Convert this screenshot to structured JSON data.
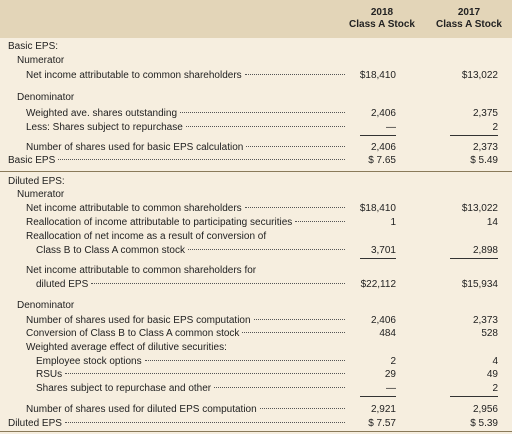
{
  "header": {
    "columns": [
      {
        "year": "2018",
        "class": "Class A Stock"
      },
      {
        "year": "2017",
        "class": "Class A Stock"
      }
    ]
  },
  "table": {
    "rows": [
      {
        "label": "Basic EPS:"
      },
      {
        "label": "Numerator"
      },
      {
        "label": "Net income attributable to common shareholders",
        "values": [
          "$18,410",
          "$13,022"
        ]
      },
      {
        "label": "Denominator"
      },
      {
        "label": "Weighted ave. shares outstanding",
        "values": [
          "2,406",
          "2,375"
        ]
      },
      {
        "label": "Less: Shares subject to repurchase",
        "values": [
          "—",
          "2"
        ]
      },
      {
        "label": "Number of shares used for basic EPS calculation",
        "values": [
          "2,406",
          "2,373"
        ]
      },
      {
        "label": "Basic EPS",
        "values": [
          "$ 7.65",
          "$ 5.49"
        ]
      },
      {
        "label": "Diluted EPS:"
      },
      {
        "label": "Numerator"
      },
      {
        "label": "Net income attributable to common shareholders",
        "values": [
          "$18,410",
          "$13,022"
        ]
      },
      {
        "label": "Reallocation of income attributable to participating securities",
        "values": [
          "1",
          "14"
        ]
      },
      {
        "label": "Reallocation of net income as a result of conversion of"
      },
      {
        "label": "Class B to Class A common stock",
        "values": [
          "3,701",
          "2,898"
        ]
      },
      {
        "label": "Net income attributable to common shareholders for"
      },
      {
        "label": "diluted EPS",
        "values": [
          "$22,112",
          "$15,934"
        ]
      },
      {
        "label": "Denominator"
      },
      {
        "label": "Number of shares used for basic EPS computation",
        "values": [
          "2,406",
          "2,373"
        ]
      },
      {
        "label": "Conversion of Class B to Class A common stock",
        "values": [
          "484",
          "528"
        ]
      },
      {
        "label": "Weighted average effect of dilutive securities:"
      },
      {
        "label": "Employee stock options",
        "values": [
          "2",
          "4"
        ]
      },
      {
        "label": "RSUs",
        "values": [
          "29",
          "49"
        ]
      },
      {
        "label": "Shares subject to repurchase and other",
        "values": [
          "—",
          "2"
        ]
      },
      {
        "label": "Number of shares used for diluted EPS computation",
        "values": [
          "2,921",
          "2,956"
        ]
      },
      {
        "label": "Diluted EPS",
        "values": [
          "$ 7.57",
          "$ 5.39"
        ]
      }
    ]
  }
}
